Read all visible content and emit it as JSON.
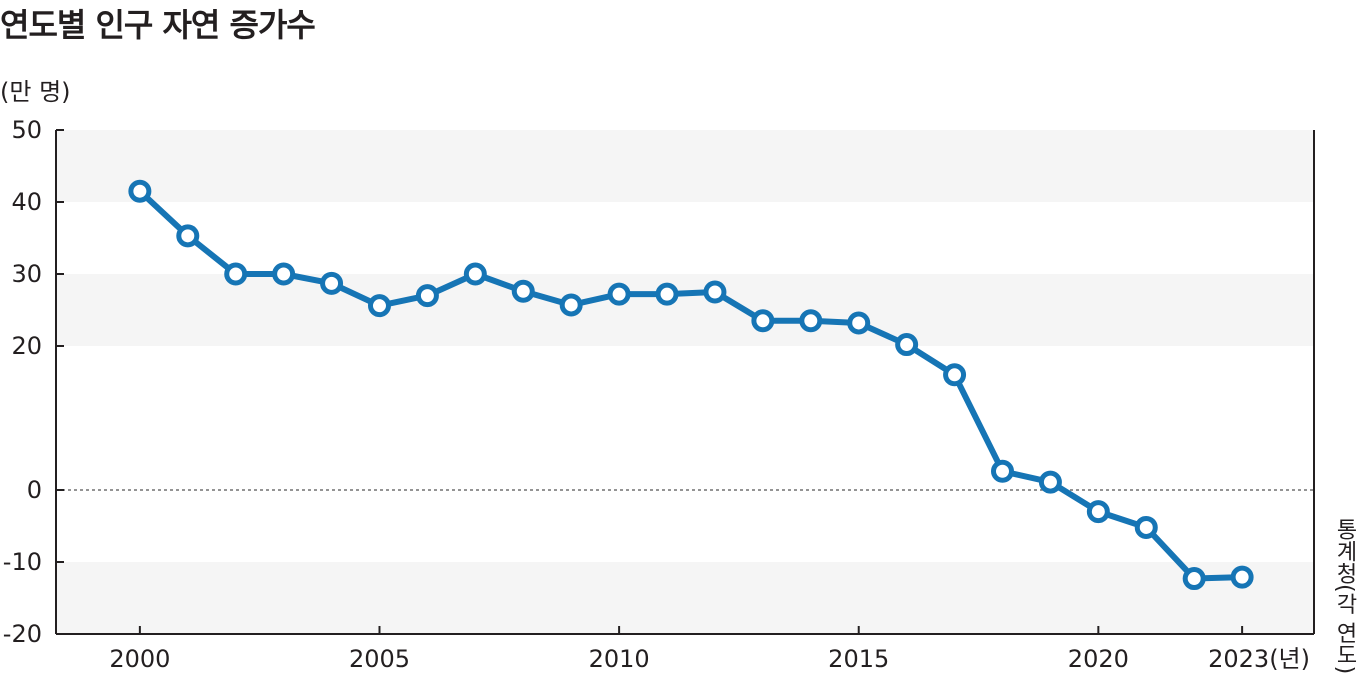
{
  "title": "연도별 인구 자연 증가수",
  "unit_label": "(만 명)",
  "source": "통계청(각 연도)",
  "x_unit_suffix": "(년)",
  "colors": {
    "line": "#1675b5",
    "band": "#f5f5f5",
    "axis": "#231f20",
    "zero_line": "#555555"
  },
  "chart_data": {
    "type": "line",
    "title": "연도별 인구 자연 증가수",
    "ylabel": "(만 명)",
    "xlabel": "(년)",
    "ylim": [
      -20,
      50
    ],
    "xlim": [
      1998.25,
      2024.5
    ],
    "yticks": [
      50,
      40,
      30,
      20,
      0,
      -10,
      -20
    ],
    "xticks": [
      2000,
      2005,
      2010,
      2015,
      2020,
      2023
    ],
    "grid": "alternating horizontal bands",
    "x": [
      2000,
      2001,
      2002,
      2003,
      2004,
      2005,
      2006,
      2007,
      2008,
      2009,
      2010,
      2011,
      2012,
      2013,
      2014,
      2015,
      2016,
      2017,
      2018,
      2019,
      2020,
      2021,
      2022,
      2023
    ],
    "series": [
      {
        "values": [
          41.5,
          35.3,
          30.0,
          30.0,
          28.7,
          25.6,
          27.0,
          30.0,
          27.6,
          25.7,
          27.2,
          27.2,
          27.5,
          23.5,
          23.5,
          23.2,
          20.2,
          16.0,
          2.6,
          1.1,
          -3.0,
          -5.2,
          -12.3,
          -12.1
        ]
      }
    ]
  }
}
